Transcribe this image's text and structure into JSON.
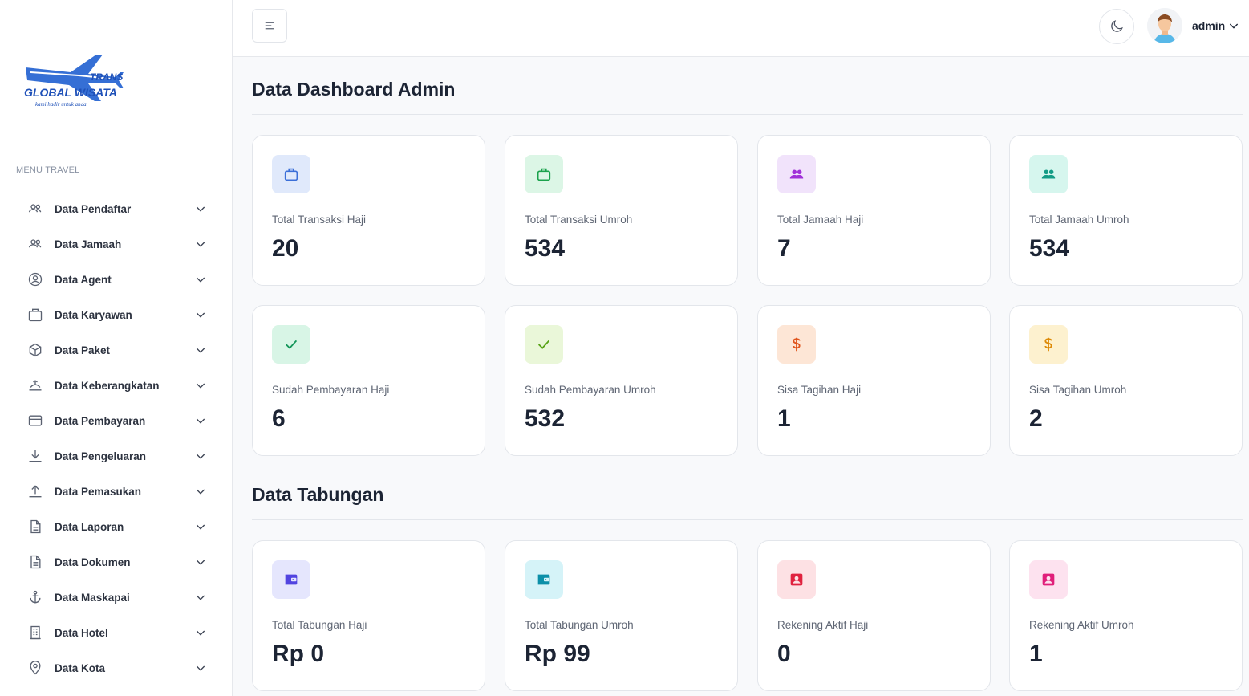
{
  "brand": {
    "logo_text_top": "TRANS",
    "logo_text_main": "GLOBAL WISATA",
    "logo_tagline": "kami hadir untuk anda"
  },
  "sidebar": {
    "heading": "MENU TRAVEL",
    "items": [
      {
        "label": "Data Pendaftar",
        "icon": "users-outline-icon"
      },
      {
        "label": "Data Jamaah",
        "icon": "users-outline-icon"
      },
      {
        "label": "Data Agent",
        "icon": "user-circle-icon"
      },
      {
        "label": "Data Karyawan",
        "icon": "briefcase-icon"
      },
      {
        "label": "Data Paket",
        "icon": "cube-icon"
      },
      {
        "label": "Data Keberangkatan",
        "icon": "departure-icon"
      },
      {
        "label": "Data Pembayaran",
        "icon": "credit-card-icon"
      },
      {
        "label": "Data Pengeluaran",
        "icon": "download-icon"
      },
      {
        "label": "Data Pemasukan",
        "icon": "upload-icon"
      },
      {
        "label": "Data Laporan",
        "icon": "document-icon"
      },
      {
        "label": "Data Dokumen",
        "icon": "document-icon"
      },
      {
        "label": "Data Maskapai",
        "icon": "anchor-icon"
      },
      {
        "label": "Data Hotel",
        "icon": "building-icon"
      },
      {
        "label": "Data Kota",
        "icon": "map-pin-icon"
      }
    ]
  },
  "header": {
    "user_name": "admin"
  },
  "main": {
    "dashboard_title": "Data Dashboard Admin",
    "tabungan_title": "Data Tabungan",
    "stats": [
      {
        "label": "Total Transaksi Haji",
        "value": "20",
        "icon": "briefcase-icon",
        "bg": "#e0e9fb",
        "fg": "#3b6fd8"
      },
      {
        "label": "Total Transaksi Umroh",
        "value": "534",
        "icon": "briefcase-icon",
        "bg": "#dcf6e6",
        "fg": "#1aa24c"
      },
      {
        "label": "Total Jamaah Haji",
        "value": "7",
        "icon": "users-icon",
        "bg": "#f1e3fb",
        "fg": "#a030d8"
      },
      {
        "label": "Total Jamaah Umroh",
        "value": "534",
        "icon": "users-icon",
        "bg": "#d6f6ee",
        "fg": "#139c86"
      },
      {
        "label": "Sudah Pembayaran Haji",
        "value": "6",
        "icon": "check-icon",
        "bg": "#d8f5e6",
        "fg": "#14965a"
      },
      {
        "label": "Sudah Pembayaran Umroh",
        "value": "532",
        "icon": "check-icon",
        "bg": "#eaf7d9",
        "fg": "#58a316"
      },
      {
        "label": "Sisa Tagihan Haji",
        "value": "1",
        "icon": "dollar-icon",
        "bg": "#fde6d6",
        "fg": "#e0541c"
      },
      {
        "label": "Sisa Tagihan Umroh",
        "value": "2",
        "icon": "dollar-icon",
        "bg": "#fdf1cf",
        "fg": "#dd8a07"
      }
    ],
    "tabungan": [
      {
        "label": "Total Tabungan Haji",
        "value": "Rp 0",
        "icon": "wallet-icon",
        "bg": "#e5e6fd",
        "fg": "#5144e0"
      },
      {
        "label": "Total Tabungan Umroh",
        "value": "Rp 99",
        "icon": "wallet-icon",
        "bg": "#d5f3f8",
        "fg": "#0b8fa8"
      },
      {
        "label": "Rekening Aktif Haji",
        "value": "0",
        "icon": "id-card-icon",
        "bg": "#fde1e4",
        "fg": "#e0223f"
      },
      {
        "label": "Rekening Aktif Umroh",
        "value": "1",
        "icon": "id-card-icon",
        "bg": "#fde2ef",
        "fg": "#e01f7a"
      }
    ]
  }
}
